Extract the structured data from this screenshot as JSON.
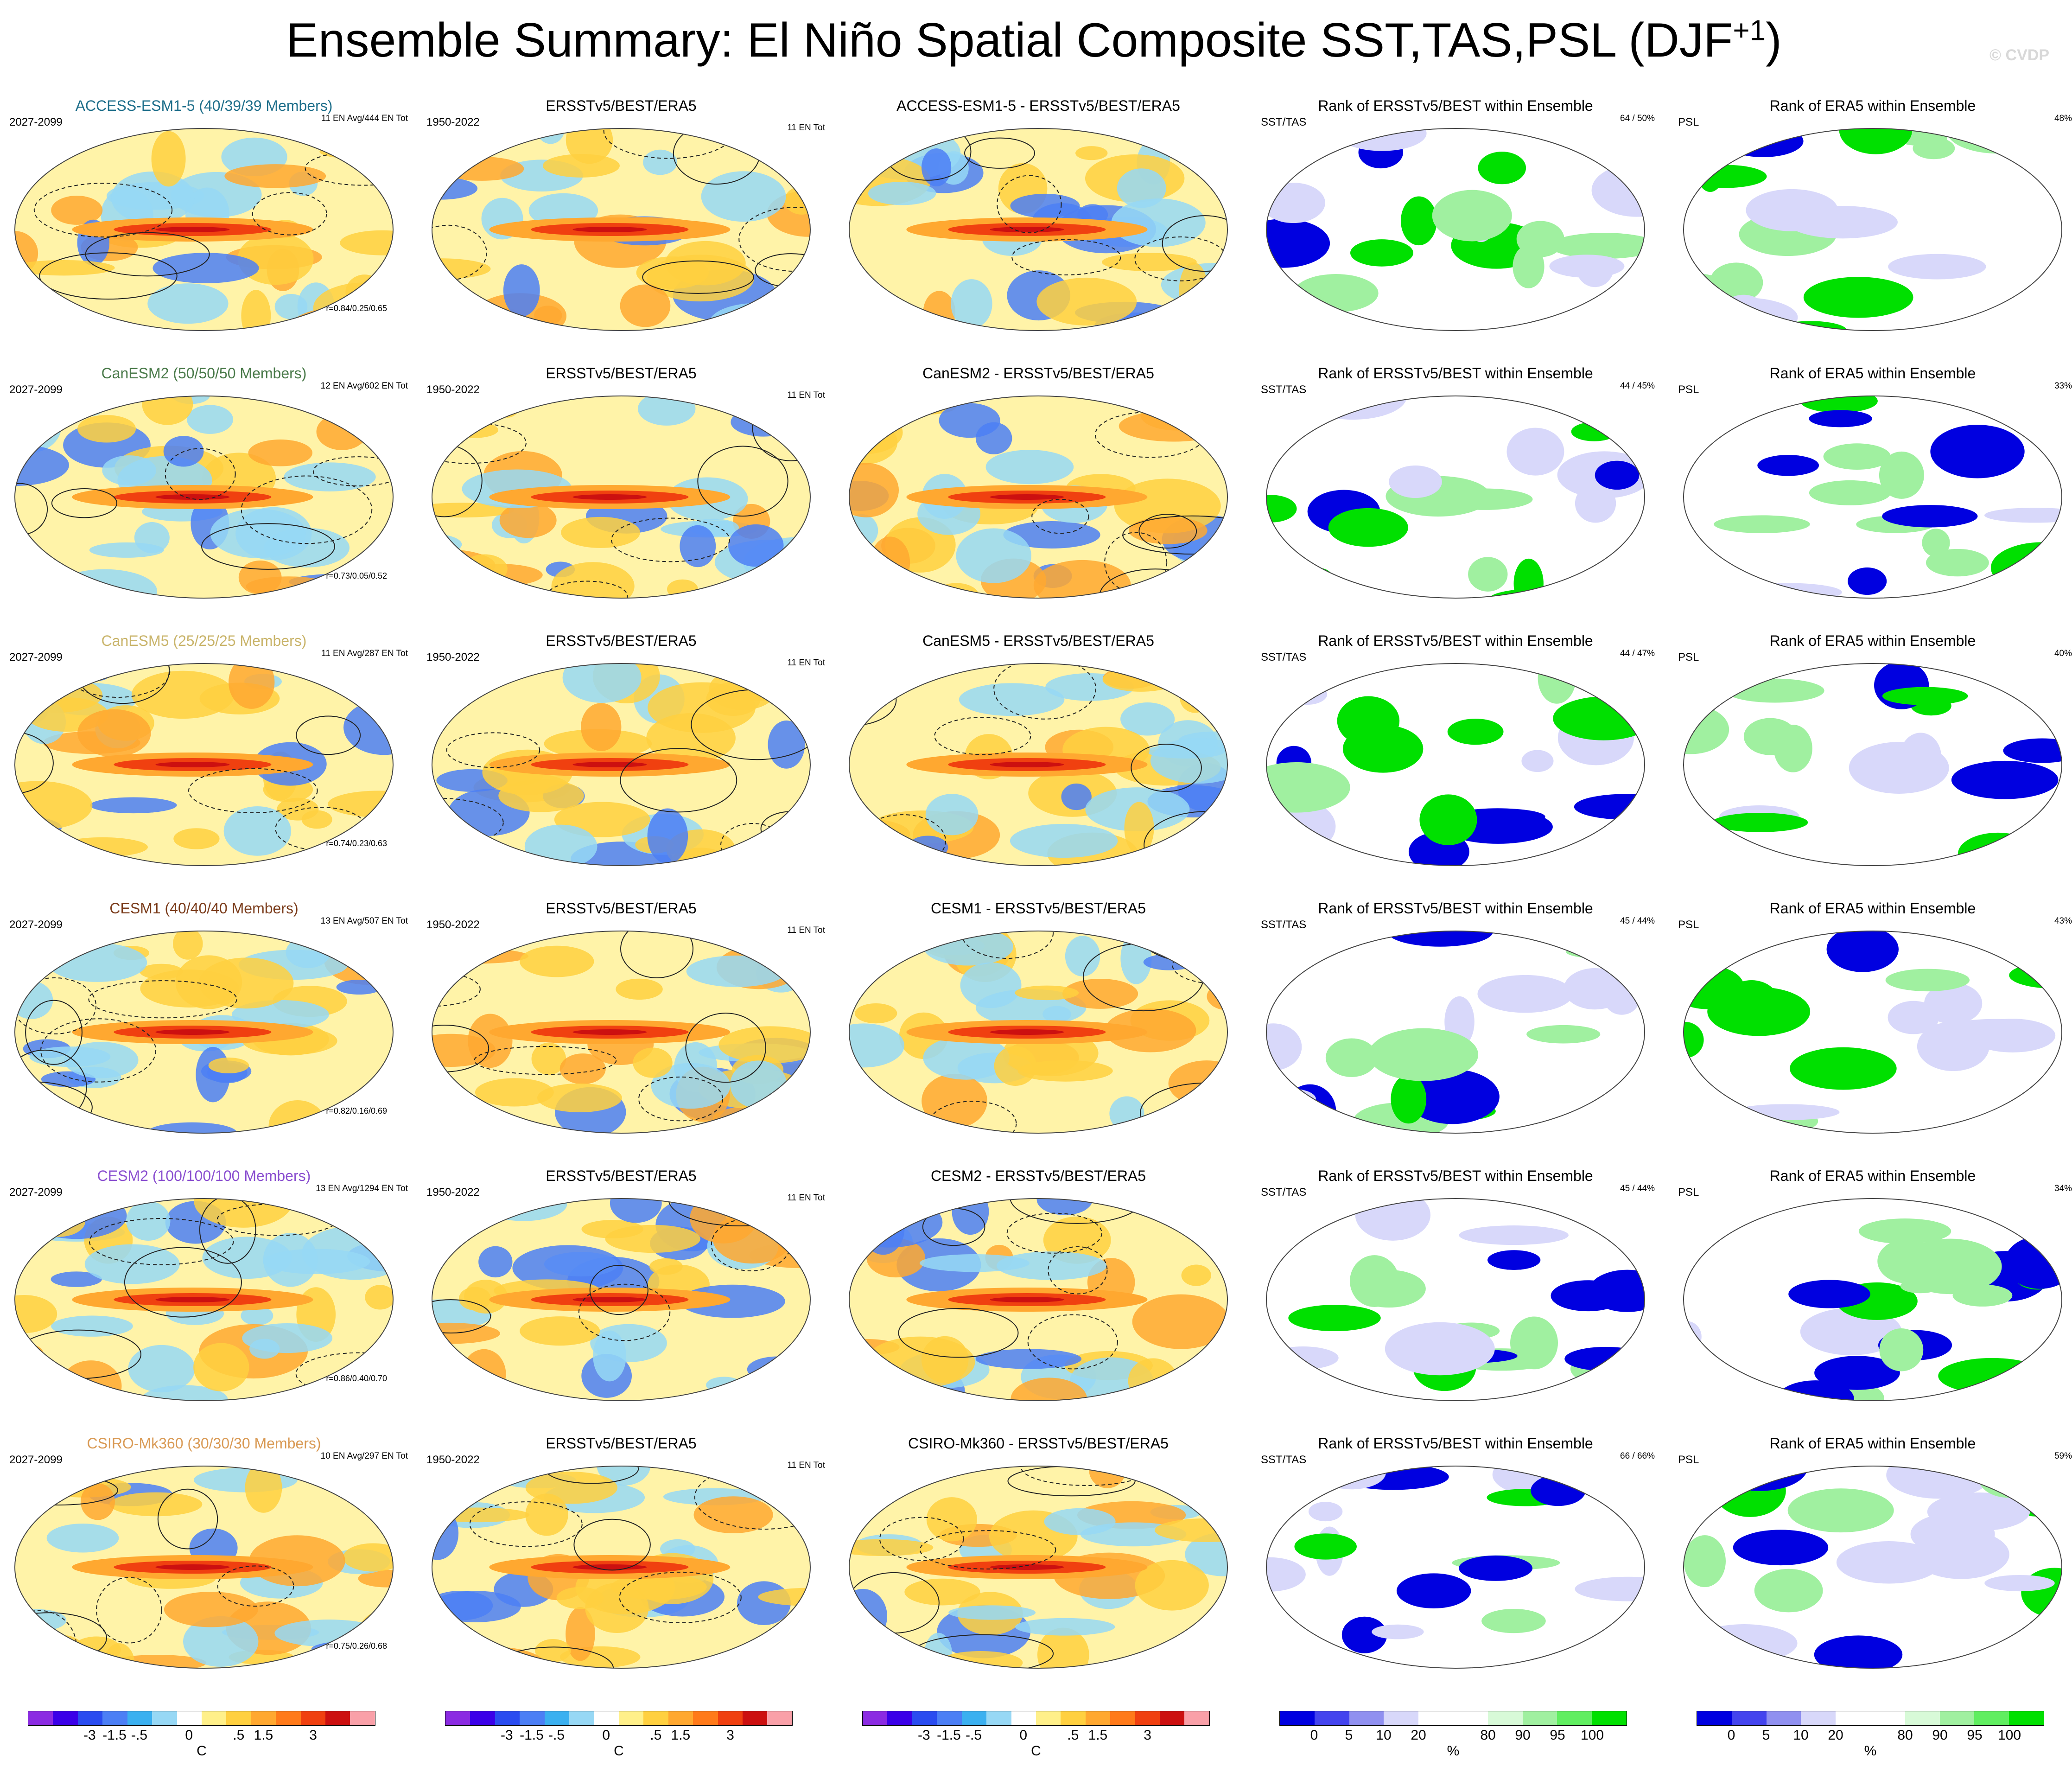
{
  "title_main": "Ensemble Summary: El Niño Spatial Composite SST,TAS,PSL (DJF",
  "title_sup": "+1",
  "title_close": ")",
  "copyright": "© CVDP",
  "colors": {
    "sst_scale": [
      "#8b2be2",
      "#3b00e8",
      "#2a4cf0",
      "#4c7ff5",
      "#3bb0f0",
      "#97d8f5",
      "#ffffff",
      "#fff08a",
      "#ffd040",
      "#ffa830",
      "#ff7a1a",
      "#f04010",
      "#cc1010",
      "#f9a0a8"
    ],
    "rank_scale": [
      "#0000e0",
      "#4444ee",
      "#9090f0",
      "#d8d8fa",
      "#ffffff",
      "#ffffff",
      "#d8fad8",
      "#a0f0a0",
      "#60ee60",
      "#00e000"
    ]
  },
  "column_titles": {
    "obs": "ERSSTv5/BEST/ERA5",
    "rank_sst": "Rank of ERSSTv5/BEST within Ensemble",
    "rank_psl": "Rank of ERA5 within Ensemble"
  },
  "labels": {
    "model_period": "2027-2099",
    "obs_period": "1950-2022",
    "obs_count": "11 EN Tot",
    "sst_tas": "SST/TAS",
    "psl": "PSL"
  },
  "rows": [
    {
      "model": "ACCESS-ESM1-5 (40/39/39 Members)",
      "color": "#1f6f8b",
      "count": "11 EN Avg/444 EN Tot",
      "r": "r=0.84/0.25/0.65",
      "diff": "ACCESS-ESM1-5 - ERSSTv5/BEST/ERA5",
      "rank_sst": "64 /  50%",
      "rank_psl": "48%"
    },
    {
      "model": "CanESM2 (50/50/50 Members)",
      "color": "#4a7a4a",
      "count": "12 EN Avg/602 EN Tot",
      "r": "r=0.73/0.05/0.52",
      "diff": "CanESM2 - ERSSTv5/BEST/ERA5",
      "rank_sst": "44 /  45%",
      "rank_psl": "33%"
    },
    {
      "model": "CanESM5 (25/25/25 Members)",
      "color": "#c9b46a",
      "count": "11 EN Avg/287 EN Tot",
      "r": "r=0.74/0.23/0.63",
      "diff": "CanESM5 - ERSSTv5/BEST/ERA5",
      "rank_sst": "44 /  47%",
      "rank_psl": "40%"
    },
    {
      "model": "CESM1 (40/40/40 Members)",
      "color": "#7a3b1a",
      "count": "13 EN Avg/507 EN Tot",
      "r": "r=0.82/0.16/0.69",
      "diff": "CESM1 - ERSSTv5/BEST/ERA5",
      "rank_sst": "45 /  44%",
      "rank_psl": "43%"
    },
    {
      "model": "CESM2 (100/100/100 Members)",
      "color": "#8a4fd0",
      "count": "13 EN Avg/1294 EN Tot",
      "r": "r=0.86/0.40/0.70",
      "diff": "CESM2 - ERSSTv5/BEST/ERA5",
      "rank_sst": "45 /  44%",
      "rank_psl": "34%"
    },
    {
      "model": "CSIRO-Mk360 (30/30/30 Members)",
      "color": "#d99a55",
      "count": "10 EN Avg/297 EN Tot",
      "r": "r=0.75/0.26/0.68",
      "diff": "CSIRO-Mk360 - ERSSTv5/BEST/ERA5",
      "rank_sst": "66 /  66%",
      "rank_psl": "59%"
    }
  ],
  "colorbars": {
    "sst_ticks": [
      "-3",
      "-1.5",
      "-.5",
      "0",
      ".5",
      "1.5",
      "3"
    ],
    "sst_unit": "C",
    "rank_ticks": [
      "0",
      "5",
      "10",
      "20",
      "80",
      "90",
      "95",
      "100"
    ],
    "rank_unit": "%"
  }
}
